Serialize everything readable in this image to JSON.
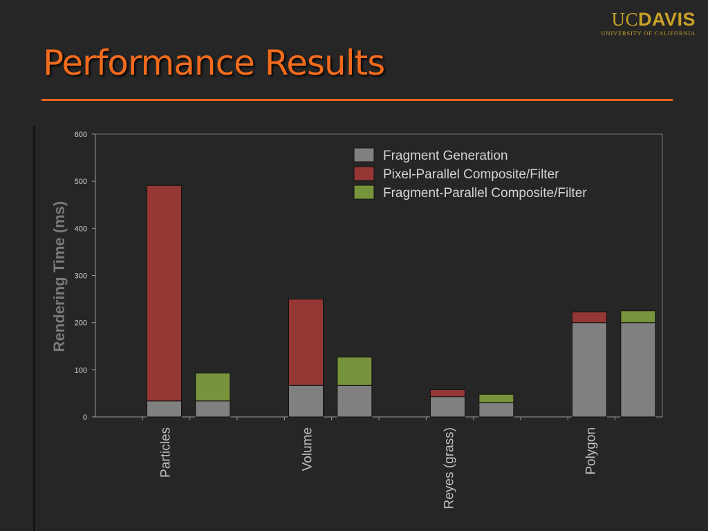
{
  "slide": {
    "title": "Performance Results",
    "logo": {
      "text_light": "UC",
      "text_bold": "DAVIS",
      "subtext": "UNIVERSITY OF CALIFORNIA"
    }
  },
  "colors": {
    "background": "#262626",
    "title": "#f26b1d",
    "rule": "#e8641a",
    "logo": "#c9a227",
    "fragment_generation": "#808080",
    "pixel_parallel": "#953735",
    "fragment_parallel": "#77933c"
  },
  "chart_data": {
    "type": "bar",
    "stacked": true,
    "grid": false,
    "legend_position": "top-right",
    "ylabel": "Rendering Time (ms)",
    "xlabel": "",
    "ylim": [
      0,
      600
    ],
    "yticks": [
      "0",
      "100",
      "200",
      "300",
      "400",
      "500",
      "600"
    ],
    "categories": [
      "Particles",
      "Volume",
      "Reyes (grass)",
      "Polygon"
    ],
    "legend": [
      {
        "name": "Fragment Generation",
        "color": "#808080"
      },
      {
        "name": "Pixel-Parallel Composite/Filter",
        "color": "#953735"
      },
      {
        "name": "Fragment-Parallel Composite/Filter",
        "color": "#77933c"
      }
    ],
    "bars": [
      {
        "category": "Particles",
        "segments": [
          {
            "series": "Fragment Generation",
            "value": 34
          },
          {
            "series": "Pixel-Parallel Composite/Filter",
            "value": 457
          }
        ]
      },
      {
        "category": "Particles",
        "segments": [
          {
            "series": "Fragment Generation",
            "value": 34
          },
          {
            "series": "Fragment-Parallel Composite/Filter",
            "value": 59
          }
        ]
      },
      {
        "category": "Volume",
        "segments": [
          {
            "series": "Fragment Generation",
            "value": 67
          },
          {
            "series": "Pixel-Parallel Composite/Filter",
            "value": 183
          }
        ]
      },
      {
        "category": "Volume",
        "segments": [
          {
            "series": "Fragment Generation",
            "value": 67
          },
          {
            "series": "Fragment-Parallel Composite/Filter",
            "value": 60
          }
        ]
      },
      {
        "category": "Reyes (grass)",
        "segments": [
          {
            "series": "Fragment Generation",
            "value": 43
          },
          {
            "series": "Pixel-Parallel Composite/Filter",
            "value": 15
          }
        ]
      },
      {
        "category": "Reyes (grass)",
        "segments": [
          {
            "series": "Fragment Generation",
            "value": 30
          },
          {
            "series": "Fragment-Parallel Composite/Filter",
            "value": 18
          }
        ]
      },
      {
        "category": "Polygon",
        "segments": [
          {
            "series": "Fragment Generation",
            "value": 200
          },
          {
            "series": "Pixel-Parallel Composite/Filter",
            "value": 23
          }
        ]
      },
      {
        "category": "Polygon",
        "segments": [
          {
            "series": "Fragment Generation",
            "value": 200
          },
          {
            "series": "Fragment-Parallel Composite/Filter",
            "value": 25
          }
        ]
      }
    ]
  }
}
